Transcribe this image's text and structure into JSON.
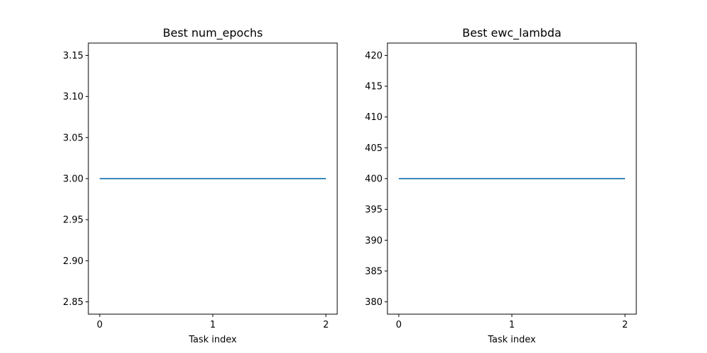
{
  "chart_data": [
    {
      "type": "line",
      "title": "Best num_epochs",
      "xlabel": "Task index",
      "ylabel": "",
      "xlim": [
        -0.1,
        2.1
      ],
      "ylim": [
        2.835,
        3.165
      ],
      "xticks": [
        0,
        1,
        2
      ],
      "xtick_labels": [
        "0",
        "1",
        "2"
      ],
      "yticks": [
        2.85,
        2.9,
        2.95,
        3.0,
        3.05,
        3.1,
        3.15
      ],
      "ytick_labels": [
        "2.85",
        "2.90",
        "2.95",
        "3.00",
        "3.05",
        "3.10",
        "3.15"
      ],
      "grid": false,
      "color": "#1f77b4",
      "series": [
        {
          "x": [
            0,
            1,
            2
          ],
          "values": [
            3,
            3,
            3
          ]
        }
      ]
    },
    {
      "type": "line",
      "title": "Best ewc_lambda",
      "xlabel": "Task index",
      "ylabel": "",
      "xlim": [
        -0.1,
        2.1
      ],
      "ylim": [
        378,
        422
      ],
      "xticks": [
        0,
        1,
        2
      ],
      "xtick_labels": [
        "0",
        "1",
        "2"
      ],
      "yticks": [
        380,
        385,
        390,
        395,
        400,
        405,
        410,
        415,
        420
      ],
      "ytick_labels": [
        "380",
        "385",
        "390",
        "395",
        "400",
        "405",
        "410",
        "415",
        "420"
      ],
      "grid": false,
      "color": "#1f77b4",
      "series": [
        {
          "x": [
            0,
            1,
            2
          ],
          "values": [
            400,
            400,
            400
          ]
        }
      ]
    }
  ]
}
